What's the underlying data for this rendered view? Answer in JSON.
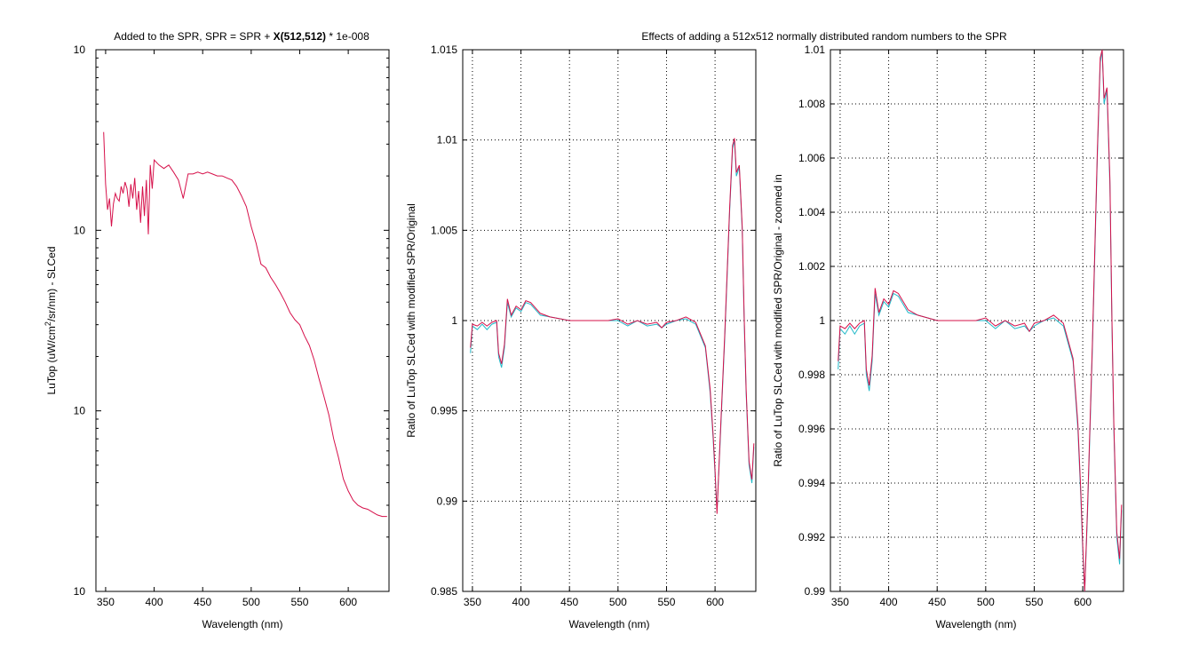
{
  "chart_data": [
    {
      "type": "line",
      "id": "left",
      "title": "Added to the SPR, SPR = SPR + X(512,512) * 1e-008",
      "title_parts": [
        "Added to the SPR, SPR = SPR + ",
        "X(512,512)",
        " * 1e-008"
      ],
      "xlabel": "Wavelength (nm)",
      "ylabel_parts": [
        "LuTop (uW/cm",
        "2",
        "/sr/nm) - SLCed"
      ],
      "xlim": [
        340,
        642
      ],
      "ylim": [
        0.01,
        10
      ],
      "yscale": "log",
      "grid": false,
      "xticks": [
        350,
        400,
        450,
        500,
        550,
        600
      ],
      "yticks": [
        {
          "value": 0.01,
          "base": "10",
          "exp": "-2"
        },
        {
          "value": 0.1,
          "base": "10",
          "exp": "-1"
        },
        {
          "value": 1,
          "base": "10",
          "exp": "0"
        },
        {
          "value": 10,
          "base": "10",
          "exp": "1"
        }
      ],
      "series": [
        {
          "color": "#d6104a",
          "x": [
            348,
            350,
            352,
            354,
            356,
            358,
            360,
            362,
            364,
            366,
            368,
            370,
            372,
            374,
            376,
            378,
            380,
            382,
            384,
            386,
            388,
            390,
            392,
            394,
            396,
            398,
            400,
            405,
            410,
            415,
            420,
            425,
            430,
            435,
            440,
            445,
            450,
            455,
            460,
            465,
            470,
            475,
            480,
            485,
            490,
            495,
            500,
            505,
            510,
            515,
            520,
            525,
            530,
            535,
            540,
            545,
            550,
            555,
            560,
            565,
            570,
            575,
            580,
            585,
            590,
            595,
            600,
            605,
            610,
            615,
            620,
            625,
            630,
            635,
            640
          ],
          "y": [
            3.5,
            1.8,
            1.3,
            1.5,
            1.05,
            1.4,
            1.6,
            1.5,
            1.45,
            1.75,
            1.6,
            1.85,
            1.7,
            1.35,
            1.8,
            1.5,
            1.95,
            1.3,
            1.65,
            1.1,
            1.75,
            1.2,
            1.9,
            0.95,
            2.3,
            1.7,
            2.45,
            2.3,
            2.2,
            2.3,
            2.1,
            1.9,
            1.5,
            2.05,
            2.05,
            2.1,
            2.05,
            2.1,
            2.05,
            2.0,
            2.0,
            1.95,
            1.9,
            1.75,
            1.55,
            1.35,
            1.05,
            0.85,
            0.65,
            0.62,
            0.55,
            0.5,
            0.45,
            0.4,
            0.35,
            0.32,
            0.3,
            0.26,
            0.23,
            0.19,
            0.15,
            0.12,
            0.095,
            0.07,
            0.055,
            0.042,
            0.036,
            0.032,
            0.03,
            0.029,
            0.0285,
            0.0275,
            0.0265,
            0.026,
            0.026
          ]
        }
      ]
    },
    {
      "type": "line",
      "id": "middle",
      "title": "Effects of adding a 512x512 normally distributed random numbers to the SPR",
      "xlabel": "Wavelength (nm)",
      "ylabel": "Ratio of LuTop SLCed with modified SPR/Original",
      "xlim": [
        340,
        642
      ],
      "ylim": [
        0.985,
        1.015
      ],
      "grid": true,
      "xticks": [
        350,
        400,
        450,
        500,
        550,
        600
      ],
      "yticks": [
        0.985,
        0.99,
        0.995,
        1,
        1.005,
        1.01,
        1.015
      ],
      "ytick_labels": [
        "0.985",
        "0.99",
        "0.995",
        "1",
        "1.005",
        "1.01",
        "1.015"
      ],
      "series": [
        {
          "color": "#1fb8c8",
          "x": [
            348,
            350,
            355,
            360,
            365,
            370,
            375,
            377,
            380,
            383,
            386,
            390,
            395,
            400,
            405,
            410,
            420,
            430,
            450,
            470,
            480,
            490,
            500,
            510,
            520,
            530,
            540,
            545,
            550,
            560,
            570,
            580,
            590,
            595,
            598,
            600,
            602,
            605,
            610,
            615,
            618,
            620,
            622,
            625,
            628,
            630,
            632,
            635,
            638,
            640
          ],
          "y": [
            0.9982,
            0.9997,
            0.9995,
            0.9998,
            0.9995,
            0.9998,
            0.9999,
            0.998,
            0.9974,
            0.9985,
            1.001,
            1.0002,
            1.0007,
            1.0005,
            1.001,
            1.0009,
            1.0003,
            1.0002,
            1.0,
            1.0,
            1.0,
            1.0,
            1.0,
            0.9997,
            1.0,
            0.9997,
            0.9998,
            0.9996,
            0.9998,
            1.0,
            1.0001,
            0.9998,
            0.9985,
            0.996,
            0.9935,
            0.9915,
            0.9895,
            0.993,
            0.999,
            1.006,
            1.0095,
            1.01,
            1.008,
            1.0085,
            1.005,
            1.0,
            0.996,
            0.992,
            0.991,
            0.993
          ]
        },
        {
          "color": "#d6104a",
          "x": [
            348,
            350,
            355,
            360,
            365,
            370,
            375,
            377,
            380,
            383,
            386,
            390,
            395,
            400,
            405,
            410,
            420,
            430,
            450,
            470,
            480,
            490,
            500,
            510,
            520,
            530,
            540,
            545,
            550,
            560,
            570,
            580,
            590,
            595,
            598,
            600,
            602,
            605,
            610,
            615,
            618,
            620,
            622,
            625,
            628,
            630,
            632,
            635,
            638,
            640
          ],
          "y": [
            0.9985,
            0.9998,
            0.9997,
            0.9999,
            0.9997,
            0.9999,
            1.0,
            0.9982,
            0.9976,
            0.9987,
            1.0012,
            1.0003,
            1.0008,
            1.0006,
            1.0011,
            1.001,
            1.0004,
            1.0002,
            1.0,
            1.0,
            1.0,
            1.0,
            1.0001,
            0.9998,
            1.0,
            0.9998,
            0.9999,
            0.9996,
            0.9999,
            1.0,
            1.0002,
            0.9999,
            0.9986,
            0.9962,
            0.9937,
            0.9917,
            0.9893,
            0.9932,
            0.9992,
            1.0062,
            1.0097,
            1.0101,
            1.0082,
            1.0086,
            1.0052,
            1.0002,
            0.9962,
            0.9922,
            0.9912,
            0.9932
          ]
        }
      ]
    },
    {
      "type": "line",
      "id": "right",
      "title": "",
      "xlabel": "Wavelength (nm)",
      "ylabel": "Ratio of LuTop SLCed with modified SPR/Original - zoomed in",
      "xlim": [
        340,
        642
      ],
      "ylim": [
        0.99,
        1.01
      ],
      "grid": true,
      "xticks": [
        350,
        400,
        450,
        500,
        550,
        600
      ],
      "yticks": [
        0.99,
        0.992,
        0.994,
        0.996,
        0.998,
        1,
        1.002,
        1.004,
        1.006,
        1.008,
        1.01
      ],
      "ytick_labels": [
        "0.99",
        "0.992",
        "0.994",
        "0.996",
        "0.998",
        "1",
        "1.002",
        "1.004",
        "1.006",
        "1.008",
        "1.01"
      ],
      "series": [
        {
          "color": "#1fb8c8",
          "x": [
            348,
            350,
            355,
            360,
            365,
            370,
            375,
            377,
            380,
            383,
            386,
            390,
            395,
            400,
            405,
            410,
            420,
            430,
            450,
            470,
            480,
            490,
            500,
            510,
            520,
            530,
            540,
            545,
            550,
            560,
            570,
            580,
            590,
            595,
            598,
            600,
            602,
            605,
            610,
            615,
            618,
            620,
            622,
            625,
            628,
            630,
            632,
            635,
            638,
            640
          ],
          "y": [
            0.9982,
            0.9997,
            0.9995,
            0.9998,
            0.9995,
            0.9998,
            0.9999,
            0.998,
            0.9974,
            0.9985,
            1.001,
            1.0002,
            1.0007,
            1.0005,
            1.001,
            1.0009,
            1.0003,
            1.0002,
            1.0,
            1.0,
            1.0,
            1.0,
            1.0,
            0.9997,
            1.0,
            0.9997,
            0.9998,
            0.9996,
            0.9998,
            1.0,
            1.0001,
            0.9998,
            0.9985,
            0.996,
            0.9935,
            0.9915,
            0.9895,
            0.993,
            0.999,
            1.006,
            1.0095,
            1.01,
            1.008,
            1.0085,
            1.005,
            1.0,
            0.996,
            0.992,
            0.991,
            0.993
          ]
        },
        {
          "color": "#d6104a",
          "x": [
            348,
            350,
            355,
            360,
            365,
            370,
            375,
            377,
            380,
            383,
            386,
            390,
            395,
            400,
            405,
            410,
            420,
            430,
            450,
            470,
            480,
            490,
            500,
            510,
            520,
            530,
            540,
            545,
            550,
            560,
            570,
            580,
            590,
            595,
            598,
            600,
            602,
            605,
            610,
            615,
            618,
            620,
            622,
            625,
            628,
            630,
            632,
            635,
            638,
            640
          ],
          "y": [
            0.9985,
            0.9998,
            0.9997,
            0.9999,
            0.9997,
            0.9999,
            1.0,
            0.9982,
            0.9976,
            0.9987,
            1.0012,
            1.0003,
            1.0008,
            1.0006,
            1.0011,
            1.001,
            1.0004,
            1.0002,
            1.0,
            1.0,
            1.0,
            1.0,
            1.0001,
            0.9998,
            1.0,
            0.9998,
            0.9999,
            0.9996,
            0.9999,
            1.0,
            1.0002,
            0.9999,
            0.9986,
            0.9962,
            0.9937,
            0.9917,
            0.9893,
            0.9932,
            0.9992,
            1.0062,
            1.0097,
            1.0101,
            1.0082,
            1.0086,
            1.0052,
            1.0002,
            0.9962,
            0.9922,
            0.9912,
            0.9932
          ]
        }
      ]
    }
  ]
}
